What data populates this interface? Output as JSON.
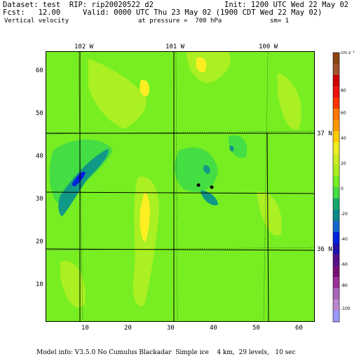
{
  "header": {
    "dataset_line": "Dataset: test  RIP: rip20020522 d2",
    "init_line": "Init: 1200 UTC Wed 22 May 02",
    "fcst_line": "Fcst:   12.00",
    "valid_line": "Valid: 0000 UTC Thu 23 May 02 (1900 CDT Wed 22 May 02)",
    "field_line": "Vertical velocity",
    "pressure_line": "at pressure =  700 hPa",
    "sm_line": "sm= 1"
  },
  "map": {
    "top_lon_labels": [
      "102 W",
      "101 W",
      "100 W"
    ],
    "right_lat_labels": [
      "37 N",
      "36 N"
    ],
    "y_ticks": [
      "60",
      "50",
      "40",
      "30",
      "20",
      "10"
    ],
    "x_ticks": [
      "10",
      "20",
      "30",
      "40",
      "50",
      "60"
    ],
    "base_color": "#77ee22",
    "light_color": "#aaf022",
    "yellow_color": "#ffee22",
    "teal_color": "#119988",
    "blue_color": "#0022dd"
  },
  "colorbar": {
    "units": "cm s⁻¹",
    "labels": [
      "80",
      "60",
      "40",
      "20",
      "0",
      "-20",
      "-40",
      "-60",
      "-80",
      "-100"
    ],
    "colors": [
      "#8b4513",
      "#a0522d",
      "#cc0000",
      "#ee1111",
      "#ff3300",
      "#ff7700",
      "#ff9900",
      "#ffcc00",
      "#eeee22",
      "#ccee22",
      "#aaee22",
      "#77ee22",
      "#44dd44",
      "#11aa66",
      "#118888",
      "#1166cc",
      "#0022dd",
      "#2211aa",
      "#551188",
      "#771177",
      "#993399",
      "#aa66bb",
      "#bb88cc",
      "#9999ff"
    ]
  },
  "footer": {
    "model_info": "Model info: V3.5.0 No Cumulus Blackadar  Simple ice    4 km,  29 levels,   10 sec"
  }
}
